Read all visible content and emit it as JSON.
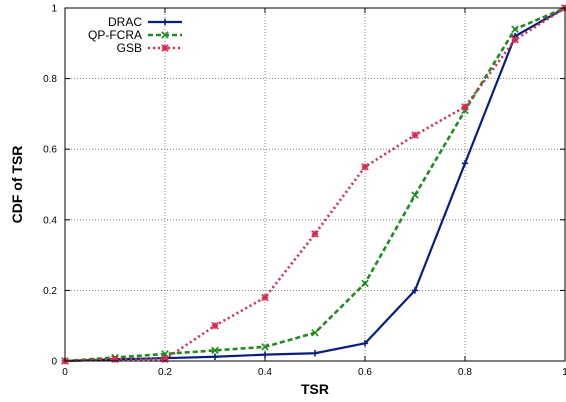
{
  "chart_data": {
    "type": "line",
    "title": "",
    "xlabel": "TSR",
    "ylabel": "CDF of TSR",
    "xlim": [
      0,
      1
    ],
    "ylim": [
      0,
      1
    ],
    "grid": true,
    "legend_position": "top-left",
    "x_ticks": [
      "0",
      "0.2",
      "0.4",
      "0.6",
      "0.8",
      "1"
    ],
    "y_ticks": [
      "0",
      "0.2",
      "0.4",
      "0.6",
      "0.8",
      "1"
    ],
    "x": [
      0,
      0.1,
      0.2,
      0.3,
      0.4,
      0.5,
      0.6,
      0.7,
      0.8,
      0.9,
      1.0
    ],
    "series": [
      {
        "name": "DRAC",
        "color": "#0a1e82",
        "style": "solid",
        "marker": "plus",
        "values": [
          0,
          0.005,
          0.008,
          0.012,
          0.018,
          0.022,
          0.05,
          0.2,
          0.56,
          0.92,
          1.0
        ]
      },
      {
        "name": "QP-FCRA",
        "color": "#1e8c1e",
        "style": "dashed",
        "marker": "x",
        "values": [
          0,
          0.01,
          0.02,
          0.03,
          0.04,
          0.08,
          0.22,
          0.47,
          0.71,
          0.94,
          1.0
        ]
      },
      {
        "name": "GSB",
        "color": "#d72850",
        "style": "dotted",
        "marker": "star",
        "values": [
          0,
          0.005,
          0.005,
          0.1,
          0.18,
          0.36,
          0.55,
          0.64,
          0.72,
          0.91,
          1.0
        ]
      }
    ]
  }
}
